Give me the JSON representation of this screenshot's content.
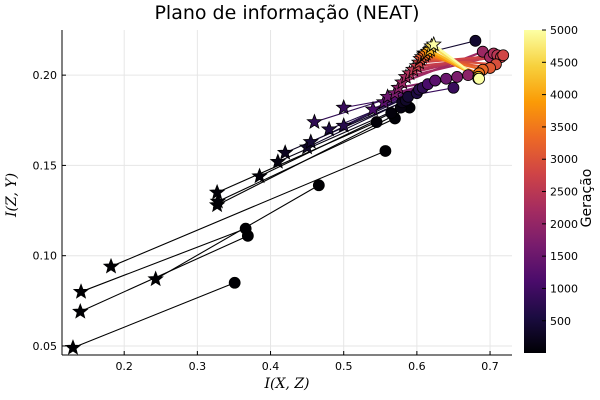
{
  "chart_data": {
    "type": "scatter",
    "title": "Plano de informação (NEAT)",
    "xlabel": "I(X, Z)",
    "ylabel": "I(Z, Y)",
    "xlim": [
      0.115,
      0.73
    ],
    "ylim": [
      0.045,
      0.225
    ],
    "xticks": [
      0.2,
      0.3,
      0.4,
      0.5,
      0.6,
      0.7
    ],
    "yticks": [
      0.05,
      0.1,
      0.15,
      0.2
    ],
    "xtick_labels": [
      "0.2",
      "0.3",
      "0.4",
      "0.5",
      "0.6",
      "0.7"
    ],
    "ytick_labels": [
      "0.05",
      "0.10",
      "0.15",
      "0.20"
    ],
    "grid": true,
    "legend": "none",
    "colorbar": {
      "label": "Geração",
      "range": [
        1,
        5000
      ],
      "ticks": [
        500,
        1000,
        1500,
        2000,
        2500,
        3000,
        3500,
        4000,
        4500,
        5000
      ],
      "colormap": "inferno",
      "colors": [
        "#000004",
        "#1b0c41",
        "#4a0c6b",
        "#781c6d",
        "#a52c60",
        "#cf4446",
        "#ed6925",
        "#fb9b06",
        "#f7d13d",
        "#fcffa4"
      ]
    },
    "trajectories": [
      {
        "gen": 1,
        "start": [
          0.351,
          0.085
        ],
        "end": [
          0.13,
          0.049
        ]
      },
      {
        "gen": 1,
        "start": [
          0.369,
          0.111
        ],
        "end": [
          0.14,
          0.069
        ]
      },
      {
        "gen": 1,
        "start": [
          0.366,
          0.115
        ],
        "end": [
          0.141,
          0.08
        ]
      },
      {
        "gen": 1,
        "start": [
          0.466,
          0.139
        ],
        "end": [
          0.243,
          0.087
        ]
      },
      {
        "gen": 1,
        "start": [
          0.557,
          0.158
        ],
        "end": [
          0.182,
          0.094
        ]
      },
      {
        "gen": 30,
        "start": [
          0.59,
          0.182
        ],
        "end": [
          0.327,
          0.128
        ]
      },
      {
        "gen": 30,
        "start": [
          0.57,
          0.176
        ],
        "end": [
          0.328,
          0.13
        ]
      },
      {
        "gen": 40,
        "start": [
          0.545,
          0.174
        ],
        "end": [
          0.327,
          0.135
        ]
      },
      {
        "gen": 60,
        "start": [
          0.565,
          0.179
        ],
        "end": [
          0.385,
          0.144
        ]
      },
      {
        "gen": 120,
        "start": [
          0.578,
          0.182
        ],
        "end": [
          0.41,
          0.152
        ]
      },
      {
        "gen": 250,
        "start": [
          0.58,
          0.185
        ],
        "end": [
          0.42,
          0.157
        ]
      },
      {
        "gen": 350,
        "start": [
          0.585,
          0.186
        ],
        "end": [
          0.45,
          0.16
        ]
      },
      {
        "gen": 450,
        "start": [
          0.588,
          0.188
        ],
        "end": [
          0.455,
          0.163
        ]
      },
      {
        "gen": 600,
        "start": [
          0.6,
          0.19
        ],
        "end": [
          0.48,
          0.17
        ]
      },
      {
        "gen": 700,
        "start": [
          0.603,
          0.192
        ],
        "end": [
          0.5,
          0.172
        ]
      },
      {
        "gen": 800,
        "start": [
          0.608,
          0.193
        ],
        "end": [
          0.46,
          0.174
        ]
      },
      {
        "gen": 900,
        "start": [
          0.65,
          0.193
        ],
        "end": [
          0.5,
          0.182
        ]
      },
      {
        "gen": 400,
        "start": [
          0.68,
          0.219
        ],
        "end": [
          0.61,
          0.212
        ]
      },
      {
        "gen": 1100,
        "start": [
          0.615,
          0.195
        ],
        "end": [
          0.54,
          0.181
        ]
      },
      {
        "gen": 1300,
        "start": [
          0.625,
          0.197
        ],
        "end": [
          0.555,
          0.185
        ]
      },
      {
        "gen": 1500,
        "start": [
          0.64,
          0.198
        ],
        "end": [
          0.56,
          0.188
        ]
      },
      {
        "gen": 1700,
        "start": [
          0.655,
          0.199
        ],
        "end": [
          0.57,
          0.19
        ]
      },
      {
        "gen": 1900,
        "start": [
          0.67,
          0.2
        ],
        "end": [
          0.575,
          0.193
        ]
      },
      {
        "gen": 2100,
        "start": [
          0.69,
          0.213
        ],
        "end": [
          0.58,
          0.196
        ]
      },
      {
        "gen": 2200,
        "start": [
          0.7,
          0.21
        ],
        "end": [
          0.585,
          0.199
        ]
      },
      {
        "gen": 2350,
        "start": [
          0.705,
          0.212
        ],
        "end": [
          0.59,
          0.201
        ]
      },
      {
        "gen": 2500,
        "start": [
          0.71,
          0.211
        ],
        "end": [
          0.595,
          0.203
        ]
      },
      {
        "gen": 2650,
        "start": [
          0.715,
          0.21
        ],
        "end": [
          0.6,
          0.205
        ]
      },
      {
        "gen": 2800,
        "start": [
          0.718,
          0.211
        ],
        "end": [
          0.603,
          0.207
        ]
      },
      {
        "gen": 2950,
        "start": [
          0.708,
          0.206
        ],
        "end": [
          0.605,
          0.209
        ]
      },
      {
        "gen": 3100,
        "start": [
          0.7,
          0.204
        ],
        "end": [
          0.607,
          0.21
        ]
      },
      {
        "gen": 3300,
        "start": [
          0.69,
          0.203
        ],
        "end": [
          0.61,
          0.211
        ]
      },
      {
        "gen": 3500,
        "start": [
          0.685,
          0.201
        ],
        "end": [
          0.612,
          0.212
        ]
      },
      {
        "gen": 3800,
        "start": [
          0.684,
          0.199
        ],
        "end": [
          0.615,
          0.213
        ]
      },
      {
        "gen": 4200,
        "start": [
          0.684,
          0.199
        ],
        "end": [
          0.618,
          0.214
        ]
      },
      {
        "gen": 4600,
        "start": [
          0.684,
          0.198
        ],
        "end": [
          0.62,
          0.216
        ]
      },
      {
        "gen": 5000,
        "start": [
          0.685,
          0.198
        ],
        "end": [
          0.623,
          0.217
        ]
      }
    ]
  }
}
